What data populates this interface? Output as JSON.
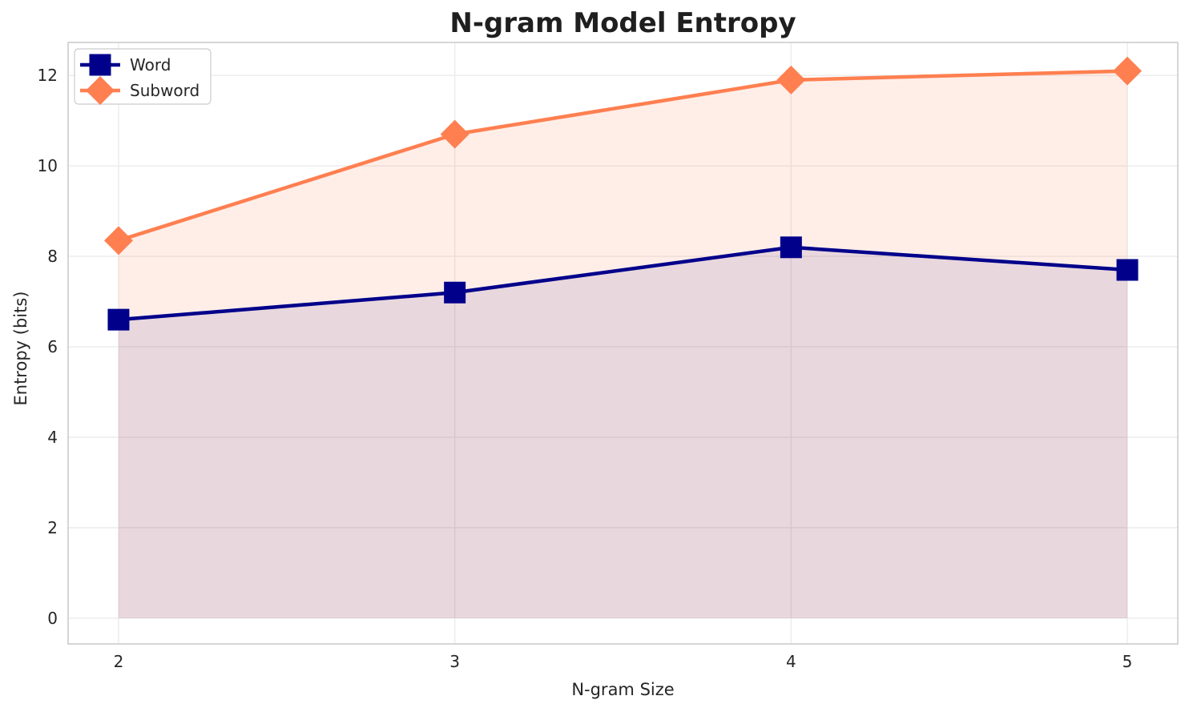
{
  "chart_data": {
    "type": "line",
    "title": "N-gram Model Entropy",
    "xlabel": "N-gram Size",
    "ylabel": "Entropy (bits)",
    "x": [
      2,
      3,
      4,
      5
    ],
    "xticks": [
      2,
      3,
      4,
      5
    ],
    "yticks": [
      0,
      2,
      4,
      6,
      8,
      10,
      12
    ],
    "xlim": [
      1.85,
      5.15
    ],
    "ylim": [
      -0.57,
      12.73
    ],
    "grid": true,
    "legend_position": "upper-left",
    "area_baseline": 0,
    "series": [
      {
        "name": "Word",
        "color": "#00008B",
        "marker": "square",
        "fill_alpha": 0.1,
        "values": [
          6.6,
          7.2,
          8.2,
          7.7
        ]
      },
      {
        "name": "Subword",
        "color": "#FF7F50",
        "marker": "diamond",
        "fill_alpha": 0.13,
        "values": [
          8.35,
          10.7,
          11.9,
          12.1
        ]
      }
    ],
    "style": {
      "text_color": "#262626",
      "title_color": "#1f1f1f",
      "grid_color": "#ebebeb",
      "spine_color": "#cccccc"
    }
  }
}
